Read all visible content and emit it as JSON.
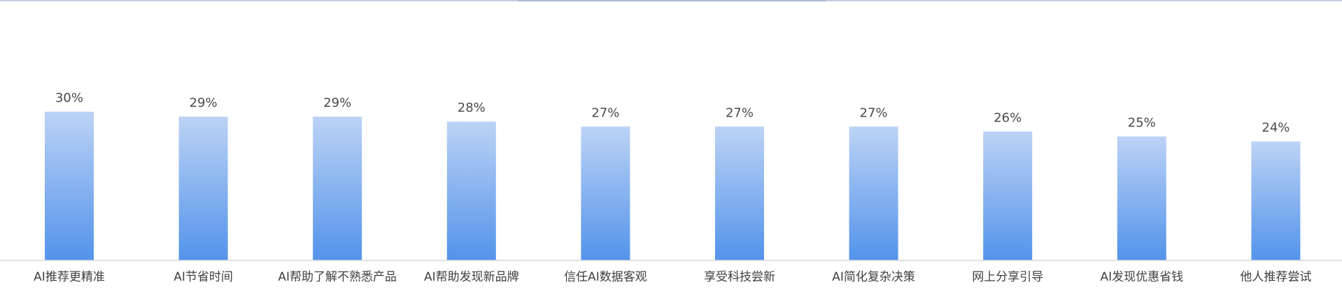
{
  "chart_data": {
    "type": "bar",
    "title": "",
    "xlabel": "",
    "ylabel": "",
    "categories": [
      "AI推荐更精准",
      "AI节省时间",
      "AI帮助了解不熟悉产品",
      "AI帮助发现新品牌",
      "信任AI数据客观",
      "享受科技尝新",
      "AI简化复杂决策",
      "网上分享引导",
      "AI发现优惠省钱",
      "他人推荐尝试"
    ],
    "values": [
      30,
      29,
      29,
      28,
      27,
      27,
      27,
      26,
      25,
      24
    ],
    "value_labels": [
      "30%",
      "29%",
      "29%",
      "28%",
      "27%",
      "27%",
      "27%",
      "26%",
      "25%",
      "24%"
    ],
    "unit": "%",
    "ylim": [
      0,
      30
    ],
    "grid": false,
    "legend": "none",
    "colors": {
      "bar_top": "#bcd3f5",
      "bar_bottom": "#5393ea",
      "axis_line": "#d6d6d6",
      "top_rule": "#c5cde3",
      "top_rule_accent": "#aeb7d6",
      "value_text": "#4a4a4a",
      "category_text": "#3f3f3f"
    }
  }
}
